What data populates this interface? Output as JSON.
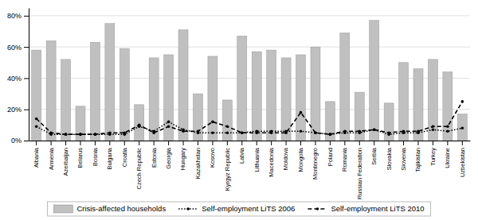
{
  "chart_data": {
    "type": "bar",
    "categories": [
      "Albania",
      "Armenia",
      "Azerbaijan",
      "Belarus",
      "Bosnia",
      "Bulgaria",
      "Croatia",
      "Czech Republic",
      "Estonia",
      "Georgia",
      "Hungary",
      "Kazakhstan",
      "Kosovo",
      "Kyrgyz Republic",
      "Latvia",
      "Lithuania",
      "Macedonia",
      "Moldova",
      "Mongolia",
      "Montenegro",
      "Poland",
      "Romania",
      "Russian Federation",
      "Serbia",
      "Slovakia",
      "Slovenia",
      "Tajikistan",
      "Turkey",
      "Ukraine",
      "Uzbekistan"
    ],
    "series": [
      {
        "name": "Crisis-affected households",
        "type": "bar",
        "color": "#c0c0c0",
        "values": [
          0.58,
          0.64,
          0.52,
          0.22,
          0.63,
          0.75,
          0.59,
          0.23,
          0.53,
          0.55,
          0.71,
          0.3,
          0.54,
          0.26,
          0.67,
          0.57,
          0.58,
          0.53,
          0.55,
          0.6,
          0.25,
          0.69,
          0.31,
          0.77,
          0.24,
          0.5,
          0.46,
          0.52,
          0.44,
          0.17
        ]
      },
      {
        "name": "Self-employment LiTS 2006",
        "type": "line",
        "color": "#000000",
        "line_style": "dotted",
        "marker": "point",
        "values": [
          0.09,
          0.04,
          0.04,
          0.04,
          0.04,
          0.04,
          0.04,
          0.09,
          0.06,
          0.12,
          0.07,
          0.05,
          0.05,
          0.05,
          0.05,
          0.06,
          0.06,
          0.06,
          0.06,
          0.05,
          0.04,
          0.05,
          0.05,
          0.07,
          0.04,
          0.05,
          0.05,
          0.07,
          0.06,
          0.08
        ]
      },
      {
        "name": "Self-employment LiTS 2010",
        "type": "line",
        "color": "#000000",
        "line_style": "dashed",
        "marker": "point",
        "values": [
          0.14,
          0.05,
          0.04,
          0.04,
          0.04,
          0.05,
          0.05,
          0.1,
          0.05,
          0.09,
          0.06,
          0.06,
          0.12,
          0.09,
          0.05,
          0.05,
          0.05,
          0.05,
          0.18,
          0.05,
          0.04,
          0.06,
          0.06,
          0.07,
          0.05,
          0.06,
          0.06,
          0.09,
          0.09,
          0.25
        ]
      }
    ],
    "ylim": [
      0,
      0.85
    ],
    "yticks": [
      {
        "value": 0.0,
        "label": "0%"
      },
      {
        "value": 0.2,
        "label": "20%"
      },
      {
        "value": 0.4,
        "label": "40%"
      },
      {
        "value": 0.6,
        "label": "60%"
      },
      {
        "value": 0.8,
        "label": "80%"
      }
    ],
    "grid": true,
    "legend": "bottom"
  }
}
